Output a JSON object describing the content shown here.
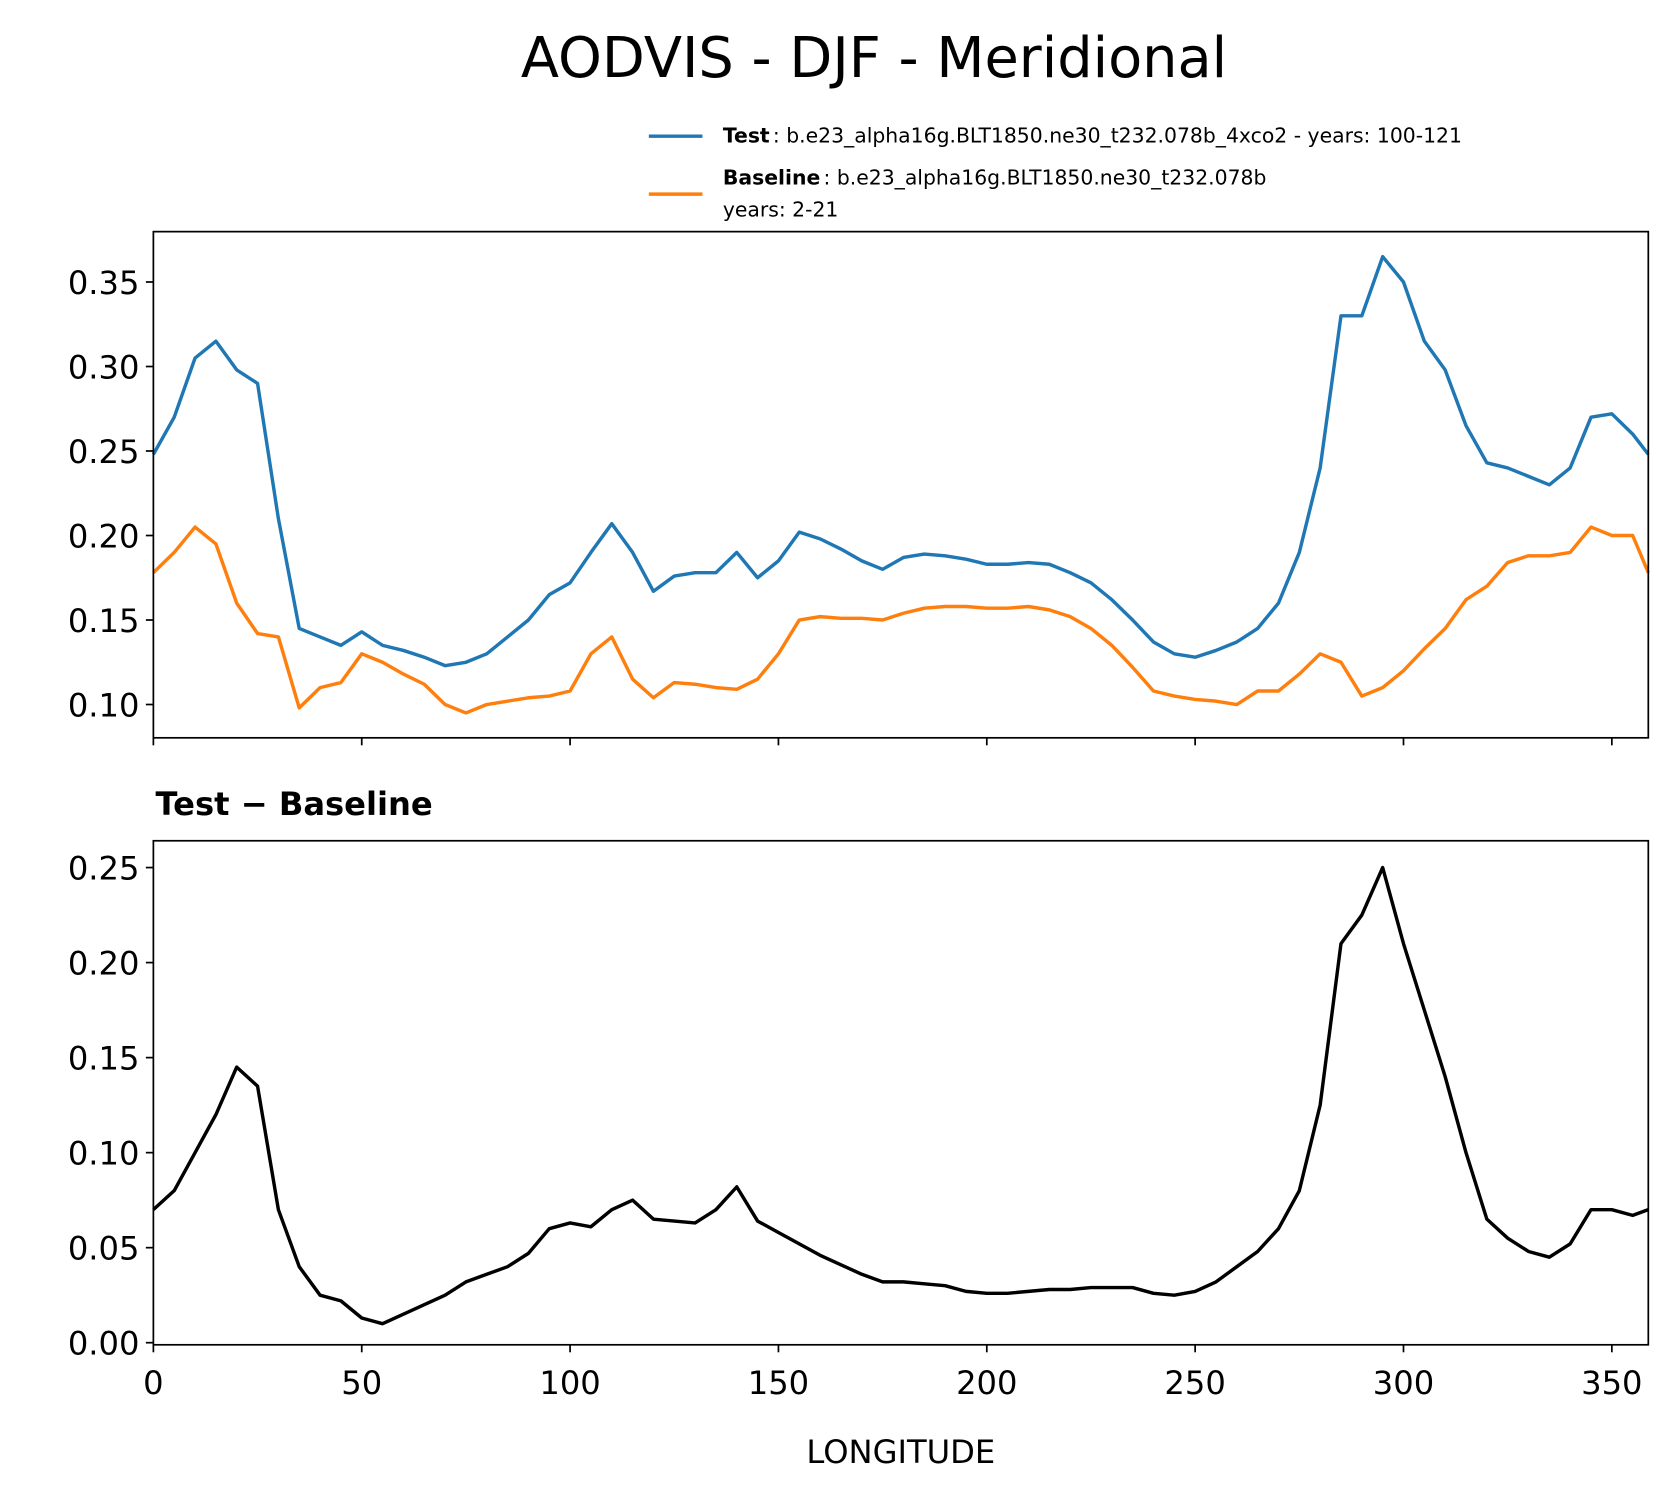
{
  "chart_data": [
    {
      "type": "line",
      "title": "AODVIS - DJF - Meridional",
      "x": [
        0,
        5,
        10,
        15,
        20,
        25,
        30,
        35,
        40,
        45,
        50,
        55,
        60,
        65,
        70,
        75,
        80,
        85,
        90,
        95,
        100,
        105,
        110,
        115,
        120,
        125,
        130,
        135,
        140,
        145,
        150,
        155,
        160,
        165,
        170,
        175,
        180,
        185,
        190,
        195,
        200,
        205,
        210,
        215,
        220,
        225,
        230,
        235,
        240,
        245,
        250,
        255,
        260,
        265,
        270,
        275,
        280,
        285,
        290,
        295,
        300,
        305,
        310,
        315,
        320,
        325,
        330,
        335,
        340,
        345,
        350,
        355,
        358.75
      ],
      "series": [
        {
          "name": "Test",
          "description": [
            ": b.e23_alpha16g.BLT1850.ne30_t232.078b_4xco2 - years: 100-121"
          ],
          "color": "#1f77b4",
          "values": [
            0.248,
            0.27,
            0.305,
            0.315,
            0.298,
            0.29,
            0.21,
            0.145,
            0.14,
            0.135,
            0.143,
            0.135,
            0.132,
            0.128,
            0.123,
            0.125,
            0.13,
            0.14,
            0.15,
            0.165,
            0.172,
            0.19,
            0.207,
            0.19,
            0.167,
            0.176,
            0.178,
            0.178,
            0.19,
            0.175,
            0.185,
            0.202,
            0.198,
            0.192,
            0.185,
            0.18,
            0.187,
            0.189,
            0.188,
            0.186,
            0.183,
            0.183,
            0.184,
            0.183,
            0.178,
            0.172,
            0.162,
            0.15,
            0.137,
            0.13,
            0.128,
            0.132,
            0.137,
            0.145,
            0.16,
            0.19,
            0.24,
            0.33,
            0.33,
            0.365,
            0.35,
            0.315,
            0.298,
            0.265,
            0.243,
            0.24,
            0.235,
            0.23,
            0.24,
            0.27,
            0.272,
            0.26,
            0.248
          ]
        },
        {
          "name": "Baseline",
          "description": [
            ": b.e23_alpha16g.BLT1850.ne30_t232.078b",
            "years: 2-21"
          ],
          "color": "#ff7f0e",
          "values": [
            0.178,
            0.19,
            0.205,
            0.195,
            0.16,
            0.142,
            0.14,
            0.098,
            0.11,
            0.113,
            0.13,
            0.125,
            0.118,
            0.112,
            0.1,
            0.095,
            0.1,
            0.102,
            0.104,
            0.105,
            0.108,
            0.13,
            0.14,
            0.115,
            0.104,
            0.113,
            0.112,
            0.11,
            0.109,
            0.115,
            0.13,
            0.15,
            0.152,
            0.151,
            0.151,
            0.15,
            0.154,
            0.157,
            0.158,
            0.158,
            0.157,
            0.157,
            0.158,
            0.156,
            0.152,
            0.145,
            0.135,
            0.122,
            0.108,
            0.105,
            0.103,
            0.102,
            0.1,
            0.108,
            0.108,
            0.118,
            0.13,
            0.125,
            0.105,
            0.11,
            0.12,
            0.133,
            0.145,
            0.162,
            0.17,
            0.184,
            0.188,
            0.188,
            0.19,
            0.205,
            0.2,
            0.2,
            0.178
          ]
        }
      ],
      "xlim": [
        0,
        358.75
      ],
      "xticks": [
        0,
        50,
        100,
        150,
        200,
        250,
        300,
        350
      ],
      "xtick_labels": false,
      "ylim": [
        0.0803,
        0.3798
      ],
      "yticks": [
        {
          "value": 0.1,
          "label": "0.10"
        },
        {
          "value": 0.15,
          "label": "0.15"
        },
        {
          "value": 0.2,
          "label": "0.20"
        },
        {
          "value": 0.25,
          "label": "0.25"
        },
        {
          "value": 0.3,
          "label": "0.30"
        },
        {
          "value": 0.35,
          "label": "0.35"
        }
      ]
    },
    {
      "type": "line",
      "title": "Test − Baseline",
      "xlabel": "LONGITUDE",
      "x": [
        0,
        5,
        10,
        15,
        20,
        25,
        30,
        35,
        40,
        45,
        50,
        55,
        60,
        65,
        70,
        75,
        80,
        85,
        90,
        95,
        100,
        105,
        110,
        115,
        120,
        125,
        130,
        135,
        140,
        145,
        150,
        155,
        160,
        165,
        170,
        175,
        180,
        185,
        190,
        195,
        200,
        205,
        210,
        215,
        220,
        225,
        230,
        235,
        240,
        245,
        250,
        255,
        260,
        265,
        270,
        275,
        280,
        285,
        290,
        295,
        300,
        305,
        310,
        315,
        320,
        325,
        330,
        335,
        340,
        345,
        350,
        355,
        358.75
      ],
      "series": [
        {
          "color": "#000000",
          "values": [
            0.07,
            0.08,
            0.1,
            0.12,
            0.145,
            0.135,
            0.07,
            0.04,
            0.025,
            0.022,
            0.013,
            0.01,
            0.015,
            0.02,
            0.025,
            0.032,
            0.036,
            0.04,
            0.047,
            0.06,
            0.063,
            0.061,
            0.07,
            0.075,
            0.065,
            0.064,
            0.063,
            0.07,
            0.082,
            0.064,
            0.058,
            0.052,
            0.046,
            0.041,
            0.036,
            0.032,
            0.032,
            0.031,
            0.03,
            0.027,
            0.026,
            0.026,
            0.027,
            0.028,
            0.028,
            0.029,
            0.029,
            0.029,
            0.026,
            0.025,
            0.027,
            0.032,
            0.04,
            0.048,
            0.06,
            0.08,
            0.125,
            0.21,
            0.225,
            0.25,
            0.21,
            0.175,
            0.14,
            0.1,
            0.065,
            0.055,
            0.048,
            0.045,
            0.052,
            0.07,
            0.07,
            0.067,
            0.07
          ]
        }
      ],
      "xlim": [
        0,
        358.75
      ],
      "xticks": [
        0,
        50,
        100,
        150,
        200,
        250,
        300,
        350
      ],
      "xtick_labels": true,
      "ylim": [
        -0.0011,
        0.2641
      ],
      "yticks": [
        {
          "value": 0,
          "label": "0.00"
        },
        {
          "value": 0.05,
          "label": "0.05"
        },
        {
          "value": 0.1,
          "label": "0.10"
        },
        {
          "value": 0.15,
          "label": "0.15"
        },
        {
          "value": 0.2,
          "label": "0.20"
        },
        {
          "value": 0.25,
          "label": "0.25"
        }
      ]
    }
  ]
}
